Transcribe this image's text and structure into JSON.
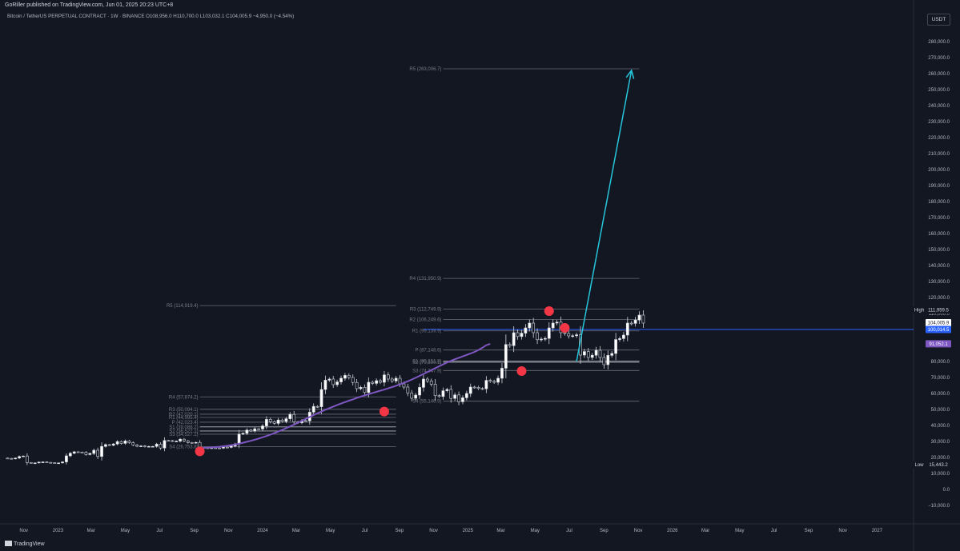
{
  "header": {
    "published": "GoRiller published on TradingView.com, Jun 01, 2025 20:23 UTC+8",
    "symbol_line": "Bitcoin / TetherUS PERPETUAL CONTRACT · 1W · BINANCE  O108,956.0  H110,700.0  L103,032.1  C104,005.9  −4,950.0 (−4.54%)",
    "currency_button": "USDT"
  },
  "footer": {
    "logo_text": "TradingView"
  },
  "colors": {
    "background": "#131722",
    "candle_up": "#ffffff",
    "candle_down": "#131722",
    "moving_average": "#7e57c2",
    "projection_arrow": "#26c6da",
    "horizontal_line": "#2962ff",
    "marker": "#f23645",
    "pivot_line": "#787b86"
  },
  "chart_data": {
    "type": "candlestick",
    "title": "Bitcoin / TetherUS PERPETUAL CONTRACT · 1W · BINANCE",
    "y_axis": {
      "ylim": [
        -15000,
        288000
      ],
      "ticks": [
        "280,000.0",
        "270,000.0",
        "260,000.0",
        "250,000.0",
        "240,000.0",
        "230,000.0",
        "220,000.0",
        "210,000.0",
        "200,000.0",
        "190,000.0",
        "180,000.0",
        "170,000.0",
        "160,000.0",
        "150,000.0",
        "140,000.0",
        "130,000.0",
        "120,000.0",
        "110,000.0",
        "100,000.0",
        "90,000.0",
        "80,000.0",
        "70,000.0",
        "60,000.0",
        "50,000.0",
        "40,000.0",
        "30,000.0",
        "20,000.0",
        "10,000.0",
        "0.0",
        "−10,000.0"
      ]
    },
    "x_axis": {
      "range": [
        "2022-10-01",
        "2027-02-28"
      ],
      "ticks": [
        {
          "label": "Nov",
          "date": "2022-11-01"
        },
        {
          "label": "2023",
          "date": "2023-01-01"
        },
        {
          "label": "Mar",
          "date": "2023-03-01"
        },
        {
          "label": "May",
          "date": "2023-05-01"
        },
        {
          "label": "Jul",
          "date": "2023-07-01"
        },
        {
          "label": "Sep",
          "date": "2023-09-01"
        },
        {
          "label": "Nov",
          "date": "2023-11-01"
        },
        {
          "label": "2024",
          "date": "2024-01-01"
        },
        {
          "label": "Mar",
          "date": "2024-03-01"
        },
        {
          "label": "May",
          "date": "2024-05-01"
        },
        {
          "label": "Jul",
          "date": "2024-07-01"
        },
        {
          "label": "Sep",
          "date": "2024-09-01"
        },
        {
          "label": "Nov",
          "date": "2024-11-01"
        },
        {
          "label": "2025",
          "date": "2025-01-01"
        },
        {
          "label": "Mar",
          "date": "2025-03-01"
        },
        {
          "label": "May",
          "date": "2025-05-01"
        },
        {
          "label": "Jul",
          "date": "2025-07-01"
        },
        {
          "label": "Sep",
          "date": "2025-09-01"
        },
        {
          "label": "Nov",
          "date": "2025-11-01"
        },
        {
          "label": "2026",
          "date": "2026-01-01"
        },
        {
          "label": "Mar",
          "date": "2026-03-01"
        },
        {
          "label": "May",
          "date": "2026-05-01"
        },
        {
          "label": "Jul",
          "date": "2026-07-01"
        },
        {
          "label": "Sep",
          "date": "2026-09-01"
        },
        {
          "label": "Nov",
          "date": "2026-11-01"
        },
        {
          "label": "2027",
          "date": "2027-01-01"
        }
      ]
    },
    "candles_weekly": {
      "start_week": "2022-10-03",
      "close": [
        19400,
        19200,
        19600,
        20600,
        20900,
        16800,
        16500,
        16600,
        17100,
        17200,
        16900,
        16700,
        16600,
        16600,
        17200,
        21000,
        22600,
        23500,
        23300,
        23200,
        21800,
        22500,
        24500,
        20600,
        26900,
        28000,
        27600,
        28400,
        29900,
        28800,
        30300,
        29200,
        27800,
        27000,
        27200,
        26700,
        26900,
        26900,
        28300,
        25900,
        30600,
        30500,
        30100,
        30200,
        31400,
        30300,
        29300,
        29100,
        29400,
        26100,
        26000,
        25800,
        26000,
        25900,
        25800,
        26400,
        26300,
        27100,
        28400,
        34600,
        35100,
        37100,
        36500,
        37900,
        37800,
        39700,
        43800,
        42300,
        41300,
        43400,
        42500,
        44200,
        46900,
        42200,
        41700,
        43000,
        42900,
        48300,
        51900,
        51700,
        62500,
        68300,
        69000,
        65500,
        67200,
        69500,
        71300,
        70000,
        66900,
        63000,
        63800,
        60600,
        67000,
        66300,
        68000,
        67000,
        71600,
        69000,
        67800,
        69500,
        66000,
        64000,
        60300,
        57000,
        59000,
        63800,
        69000,
        67800,
        65800,
        58700,
        58100,
        61700,
        62500,
        56900,
        59100,
        54800,
        57300,
        60000,
        64000,
        63800,
        63100,
        62900,
        68200,
        67600,
        67000,
        69500,
        75800,
        90600,
        89900,
        98000,
        95600,
        97700,
        101000,
        104000,
        98000,
        93600,
        94000,
        94400,
        101000,
        104000,
        104600,
        98000,
        97500,
        96000,
        96100,
        96700,
        84000,
        86200,
        82500,
        83900,
        87000,
        82500,
        78000,
        83800,
        85000,
        93700,
        94300,
        96500,
        104000,
        103800,
        105900,
        109000,
        104005.9
      ],
      "note": "approximate weekly closes read from the chart; highs/lows derived in script"
    },
    "moving_average": {
      "start_week": "2023-09-11",
      "values": [
        25900,
        26000,
        26200,
        26300,
        26500,
        26700,
        27000,
        27300,
        27700,
        28100,
        28600,
        29200,
        29800,
        30400,
        31100,
        31800,
        32600,
        33400,
        34300,
        35200,
        36200,
        37200,
        38300,
        39400,
        40500,
        41700,
        42900,
        44100,
        45300,
        46500,
        47600,
        48700,
        49800,
        50800,
        51800,
        52800,
        53700,
        54600,
        55500,
        56300,
        57200,
        58000,
        58800,
        59500,
        60300,
        61000,
        61700,
        62400,
        63200,
        64000,
        64800,
        65700,
        66600,
        67600,
        68700,
        69800,
        71000,
        72200,
        73400,
        74600,
        75800,
        77000,
        78200,
        79300,
        80400,
        81400,
        82300,
        83200,
        84100,
        85000,
        86000,
        87200,
        88600,
        90200,
        91052.1
      ]
    },
    "horizontal_line": {
      "value": 100014.5,
      "label": "100,014.5"
    },
    "projection_arrow": {
      "from": {
        "date": "2025-07-14",
        "value": 80000
      },
      "to": {
        "date": "2025-10-20",
        "value": 262000
      }
    },
    "markers": [
      {
        "date": "2023-09-11",
        "value": 23800
      },
      {
        "date": "2024-08-05",
        "value": 48700
      },
      {
        "date": "2025-04-07",
        "value": 74000
      },
      {
        "date": "2025-05-26",
        "value": 111500
      },
      {
        "date": "2025-06-23",
        "value": 101000
      }
    ],
    "pivot_sets": [
      {
        "from": "2023-09-11",
        "to": "2024-08-26",
        "levels": [
          {
            "label": "R5",
            "text": "R5 (114,919.4)",
            "value": 114919.4
          },
          {
            "label": "R4",
            "text": "R4 (57,874.2)",
            "value": 57874.2
          },
          {
            "label": "R3",
            "text": "R3 (50,094.1)",
            "value": 50094.1
          },
          {
            "label": "R2",
            "text": "R2 (47,020.1)",
            "value": 47020.1
          },
          {
            "label": "R1",
            "text": "R1 (44,995.4)",
            "value": 44995.4
          },
          {
            "label": "P",
            "text": "P (42,023.4)",
            "value": 42023.4
          },
          {
            "label": "S1",
            "text": "S1 (39,088.2)",
            "value": 39088.2
          },
          {
            "label": "S2",
            "text": "S2 (36,527.1)",
            "value": 36527.1
          },
          {
            "label": "S3",
            "text": "S3 (34,527.1)",
            "value": 34527.1
          },
          {
            "label": "S4",
            "text": "S4 (26,753.8)",
            "value": 26753.8
          }
        ]
      },
      {
        "from": "2024-11-18",
        "to": "2025-11-03",
        "levels": [
          {
            "label": "R5",
            "text": "R5 (263,006.7)",
            "value": 263006.7
          },
          {
            "label": "R4",
            "text": "R4 (131,950.9)",
            "value": 131950.9
          },
          {
            "label": "R3",
            "text": "R3 (112,749.9)",
            "value": 112749.9
          },
          {
            "label": "R2",
            "text": "R2 (106,249.6)",
            "value": 106249.6
          },
          {
            "label": "R1",
            "text": "R1 (99,139.9)",
            "value": 99139.9
          },
          {
            "label": "P",
            "text": "P (87,148.6)",
            "value": 87148.6
          },
          {
            "label": "S1",
            "text": "S1 (80,151.8)",
            "value": 80151.8
          },
          {
            "label": "S2",
            "text": "S2 (79,500.1)",
            "value": 79500.1
          },
          {
            "label": "S3",
            "text": "S3 (74,347.9)",
            "value": 74347.9
          },
          {
            "label": "S4",
            "text": "S4 (55,146.9)",
            "value": 55146.9
          }
        ]
      }
    ],
    "price_badges": [
      {
        "title": "High",
        "text": "111,959.5",
        "value": 111959.5,
        "bg": "#131722",
        "fg": "#d1d4dc",
        "title_bg": "#131722"
      },
      {
        "title": "",
        "text": "104,005.9",
        "sub": "11:36:23",
        "value": 104005.9,
        "bg": "#ffffff",
        "fg": "#131722"
      },
      {
        "title": "",
        "text": "100,014.5",
        "value": 100014.5,
        "bg": "#2962ff",
        "fg": "#ffffff"
      },
      {
        "title": "",
        "text": "91,052.1",
        "value": 91052.1,
        "bg": "#7e57c2",
        "fg": "#ffffff"
      },
      {
        "title": "Low",
        "text": "15,443.2",
        "value": 15443.2,
        "bg": "#131722",
        "fg": "#d1d4dc",
        "title_bg": "#131722"
      }
    ]
  }
}
